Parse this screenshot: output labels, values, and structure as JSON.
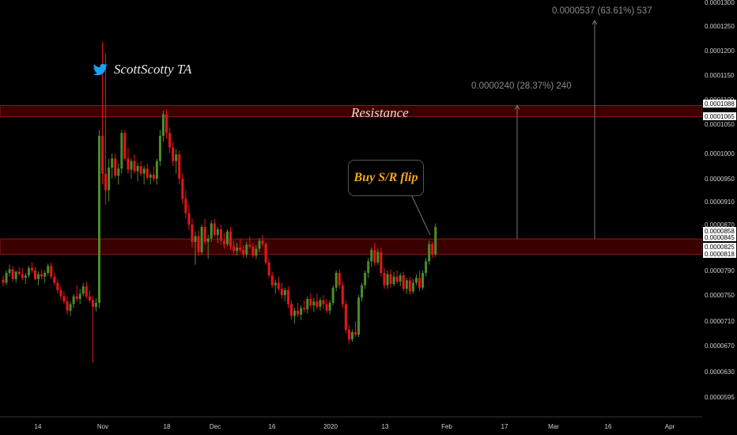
{
  "brand": {
    "handle": "ScottScotty TA",
    "icon": "twitter-bird-icon",
    "icon_color": "#1da1f2"
  },
  "annotations": {
    "resistance_label": "Resistance",
    "callout_label": "Buy S/R flip",
    "measure_large": "0.0000537 (63.61%) 537",
    "measure_small": "0.0000240 (28.37%) 240"
  },
  "colors": {
    "up": "#4c8c2b",
    "down": "#e8141b",
    "zone_fill": "#3a0000",
    "zone_border": "#8b1a1a",
    "axis_text": "#d0d0d0",
    "price_tag_bg": "#ffffff"
  },
  "chart_data": {
    "type": "candlestick",
    "title": "",
    "xlabel": "",
    "ylabel": "",
    "ylim": [
      5.75e-05,
      0.0001305
    ],
    "x_ticks": [
      "14",
      "Nov",
      "18",
      "Dec",
      "16",
      "2020",
      "13",
      "Feb",
      "17",
      "Mar",
      "16",
      "Apr"
    ],
    "y_ticks": [
      "0.0001300",
      "0.0001250",
      "0.0001200",
      "0.0001150",
      "0.0001100",
      "0.0001050",
      "0.0001000",
      "0.0000950",
      "0.0000910",
      "0.0000870",
      "0.0000830",
      "0.0000790",
      "0.0000750",
      "0.0000710",
      "0.0000670",
      "0.0000630",
      "0.0000595"
    ],
    "price_tags": [
      "0.0001088",
      "0.0001065",
      "0.0000858",
      "0.0000845",
      "0.0000825",
      "0.0000818"
    ],
    "zones": [
      {
        "name": "resistance",
        "from": 0.0001065,
        "to": 0.0001088
      },
      {
        "name": "support-resistance-flip",
        "from": 8.18e-05,
        "to": 8.45e-05
      }
    ],
    "candles": [
      [
        7.75e-05,
        7.82e-05,
        7.64e-05,
        7.7e-05
      ],
      [
        7.7e-05,
        7.9e-05,
        7.66e-05,
        7.86e-05
      ],
      [
        7.86e-05,
        8e-05,
        7.8e-05,
        7.92e-05
      ],
      [
        7.92e-05,
        7.98e-05,
        7.72e-05,
        7.76e-05
      ],
      [
        7.76e-05,
        7.9e-05,
        7.7e-05,
        7.88e-05
      ],
      [
        7.88e-05,
        7.96e-05,
        7.82e-05,
        7.84e-05
      ],
      [
        7.84e-05,
        7.94e-05,
        7.74e-05,
        7.78e-05
      ],
      [
        7.78e-05,
        7.86e-05,
        7.68e-05,
        7.82e-05
      ],
      [
        7.82e-05,
        7.98e-05,
        7.78e-05,
        7.94e-05
      ],
      [
        7.94e-05,
        8.04e-05,
        7.86e-05,
        7.9e-05
      ],
      [
        7.9e-05,
        7.96e-05,
        7.74e-05,
        7.76e-05
      ],
      [
        7.76e-05,
        7.88e-05,
        7.66e-05,
        7.84e-05
      ],
      [
        7.84e-05,
        7.92e-05,
        7.76e-05,
        7.8e-05
      ],
      [
        7.8e-05,
        7.9e-05,
        7.7e-05,
        7.86e-05
      ],
      [
        7.86e-05,
        8.02e-05,
        7.82e-05,
        7.98e-05
      ],
      [
        7.98e-05,
        8.04e-05,
        7.76e-05,
        7.8e-05
      ],
      [
        7.8e-05,
        7.86e-05,
        7.66e-05,
        7.7e-05
      ],
      [
        7.7e-05,
        7.76e-05,
        7.52e-05,
        7.58e-05
      ],
      [
        7.58e-05,
        7.64e-05,
        7.42e-05,
        7.48e-05
      ],
      [
        7.48e-05,
        7.56e-05,
        7.36e-05,
        7.4e-05
      ],
      [
        7.4e-05,
        7.48e-05,
        7.2e-05,
        7.26e-05
      ],
      [
        7.26e-05,
        7.4e-05,
        7.18e-05,
        7.36e-05
      ],
      [
        7.36e-05,
        7.52e-05,
        7.3e-05,
        7.48e-05
      ],
      [
        7.48e-05,
        7.66e-05,
        7.4e-05,
        7.44e-05
      ],
      [
        7.44e-05,
        7.6e-05,
        7.36e-05,
        7.52e-05
      ],
      [
        7.52e-05,
        7.7e-05,
        7.48e-05,
        7.64e-05
      ],
      [
        7.64e-05,
        7.72e-05,
        7.44e-05,
        7.48e-05
      ],
      [
        7.48e-05,
        7.58e-05,
        7.38e-05,
        7.42e-05
      ],
      [
        7.42e-05,
        7.48e-05,
        6.44e-05,
        7.32e-05
      ],
      [
        7.32e-05,
        7.45e-05,
        7.25e-05,
        7.38e-05
      ],
      [
        7.38e-05,
        0.000104,
        7.3e-05,
        0.000103
      ],
      [
        0.000103,
        0.0001218,
        9.4e-05,
        9.6e-05
      ],
      [
        9.6e-05,
        0.0001195,
        9.05e-05,
        9.3e-05
      ],
      [
        9.3e-05,
        9.9e-05,
        9.1e-05,
        9.72e-05
      ],
      [
        9.72e-05,
        0.0001,
        9.5e-05,
        9.9e-05
      ],
      [
        9.9e-05,
        0.0001,
        9.5e-05,
        9.56e-05
      ],
      [
        9.56e-05,
        9.8e-05,
        9.4e-05,
        9.7e-05
      ],
      [
        9.7e-05,
        0.000104,
        9.6e-05,
        0.0001035
      ],
      [
        0.0001035,
        0.000104,
        9.85e-05,
        9.9e-05
      ],
      [
        9.9e-05,
        0.000101,
        9.6e-05,
        9.68e-05
      ],
      [
        9.68e-05,
        9.9e-05,
        9.5e-05,
        9.85e-05
      ],
      [
        9.85e-05,
        9.98e-05,
        9.6e-05,
        9.65e-05
      ],
      [
        9.65e-05,
        9.82e-05,
        9.45e-05,
        9.75e-05
      ],
      [
        9.75e-05,
        9.85e-05,
        9.55e-05,
        9.6e-05
      ],
      [
        9.6e-05,
        9.76e-05,
        9.4e-05,
        9.7e-05
      ],
      [
        9.7e-05,
        9.8e-05,
        9.48e-05,
        9.52e-05
      ],
      [
        9.52e-05,
        9.62e-05,
        9.4e-05,
        9.58e-05
      ],
      [
        9.58e-05,
        9.75e-05,
        9.45e-05,
        9.5e-05
      ],
      [
        9.5e-05,
        9.9e-05,
        9.4e-05,
        9.85e-05
      ],
      [
        9.85e-05,
        0.000104,
        9.75e-05,
        0.000103
      ],
      [
        0.000103,
        0.0001078,
        0.000102,
        0.000107
      ],
      [
        0.000107,
        0.000108,
        0.0001025,
        0.0001035
      ],
      [
        0.0001035,
        0.0001045,
        0.0001,
        0.000101
      ],
      [
        0.000101,
        0.000102,
        9.75e-05,
        9.85e-05
      ],
      [
        9.85e-05,
        0.0001008,
        9.6e-05,
        9.98e-05
      ],
      [
        9.98e-05,
        0.0001005,
        9.4e-05,
        9.5e-05
      ],
      [
        9.5e-05,
        9.6e-05,
        9.05e-05,
        9.15e-05
      ],
      [
        9.15e-05,
        9.3e-05,
        8.8e-05,
        8.9e-05
      ],
      [
        8.9e-05,
        9.05e-05,
        8.6e-05,
        8.7e-05
      ],
      [
        8.7e-05,
        8.8e-05,
        8.3e-05,
        8.4e-05
      ],
      [
        8.4e-05,
        8.58e-05,
        8e-05,
        8.5e-05
      ],
      [
        8.5e-05,
        8.6e-05,
        8.15e-05,
        8.22e-05
      ],
      [
        8.22e-05,
        8.7e-05,
        8.18e-05,
        8.66e-05
      ],
      [
        8.66e-05,
        8.8e-05,
        8.35e-05,
        8.4e-05
      ],
      [
        8.4e-05,
        8.52e-05,
        8.1e-05,
        8.46e-05
      ],
      [
        8.46e-05,
        8.78e-05,
        8.4e-05,
        8.72e-05
      ],
      [
        8.72e-05,
        8.8e-05,
        8.48e-05,
        8.52e-05
      ],
      [
        8.52e-05,
        8.66e-05,
        8.38e-05,
        8.62e-05
      ],
      [
        8.62e-05,
        8.7e-05,
        8.36e-05,
        8.42e-05
      ],
      [
        8.42e-05,
        8.56e-05,
        8.28e-05,
        8.36e-05
      ],
      [
        8.36e-05,
        8.62e-05,
        8.32e-05,
        8.58e-05
      ],
      [
        8.58e-05,
        8.66e-05,
        8.26e-05,
        8.32e-05
      ],
      [
        8.32e-05,
        8.42e-05,
        8.18e-05,
        8.24e-05
      ],
      [
        8.24e-05,
        8.38e-05,
        8.16e-05,
        8.3e-05
      ],
      [
        8.3e-05,
        8.45e-05,
        8.22e-05,
        8.26e-05
      ],
      [
        8.26e-05,
        8.34e-05,
        8.12e-05,
        8.18e-05
      ],
      [
        8.18e-05,
        8.4e-05,
        8.12e-05,
        8.35e-05
      ],
      [
        8.35e-05,
        8.5e-05,
        8.28e-05,
        8.32e-05
      ],
      [
        8.32e-05,
        8.38e-05,
        8.12e-05,
        8.16e-05
      ],
      [
        8.16e-05,
        8.34e-05,
        8.1e-05,
        8.28e-05
      ],
      [
        8.28e-05,
        8.46e-05,
        8.22e-05,
        8.42e-05
      ],
      [
        8.42e-05,
        8.52e-05,
        8.32e-05,
        8.36e-05
      ],
      [
        8.36e-05,
        8.4e-05,
        8e-05,
        8.04e-05
      ],
      [
        8.04e-05,
        8.1e-05,
        7.78e-05,
        7.82e-05
      ],
      [
        7.82e-05,
        7.88e-05,
        7.62e-05,
        7.66e-05
      ],
      [
        7.66e-05,
        7.75e-05,
        7.52e-05,
        7.7e-05
      ],
      [
        7.7e-05,
        7.8e-05,
        7.56e-05,
        7.6e-05
      ],
      [
        7.6e-05,
        7.7e-05,
        7.44e-05,
        7.5e-05
      ],
      [
        7.5e-05,
        7.62e-05,
        7.4e-05,
        7.58e-05
      ],
      [
        7.58e-05,
        7.64e-05,
        7.3e-05,
        7.36e-05
      ],
      [
        7.36e-05,
        7.42e-05,
        7.12e-05,
        7.18e-05
      ],
      [
        7.18e-05,
        7.3e-05,
        7.06e-05,
        7.26e-05
      ],
      [
        7.26e-05,
        7.38e-05,
        7.16e-05,
        7.2e-05
      ],
      [
        7.2e-05,
        7.34e-05,
        7.12e-05,
        7.3e-05
      ],
      [
        7.3e-05,
        7.42e-05,
        7.24e-05,
        7.28e-05
      ],
      [
        7.28e-05,
        7.48e-05,
        7.22e-05,
        7.44e-05
      ],
      [
        7.44e-05,
        7.52e-05,
        7.3e-05,
        7.34e-05
      ],
      [
        7.34e-05,
        7.46e-05,
        7.24e-05,
        7.4e-05
      ],
      [
        7.4e-05,
        7.52e-05,
        7.28e-05,
        7.32e-05
      ],
      [
        7.32e-05,
        7.46e-05,
        7.26e-05,
        7.42e-05
      ],
      [
        7.42e-05,
        7.5e-05,
        7.28e-05,
        7.36e-05
      ],
      [
        7.36e-05,
        7.44e-05,
        7.22e-05,
        7.26e-05
      ],
      [
        7.26e-05,
        7.42e-05,
        7.2e-05,
        7.38e-05
      ],
      [
        7.38e-05,
        7.66e-05,
        7.34e-05,
        7.62e-05
      ],
      [
        7.62e-05,
        7.9e-05,
        7.56e-05,
        7.86e-05
      ],
      [
        7.86e-05,
        7.92e-05,
        7.6e-05,
        7.66e-05
      ],
      [
        7.66e-05,
        7.72e-05,
        7.3e-05,
        7.36e-05
      ],
      [
        7.36e-05,
        7.42e-05,
        6.9e-05,
        6.96e-05
      ],
      [
        6.96e-05,
        7.04e-05,
        6.72e-05,
        6.8e-05
      ],
      [
        6.8e-05,
        6.96e-05,
        6.76e-05,
        6.92e-05
      ],
      [
        6.92e-05,
        7.1e-05,
        6.84e-05,
        6.88e-05
      ],
      [
        6.88e-05,
        7.5e-05,
        6.84e-05,
        7.46e-05
      ],
      [
        7.46e-05,
        7.7e-05,
        7.4e-05,
        7.66e-05
      ],
      [
        7.66e-05,
        7.9e-05,
        7.6e-05,
        7.86e-05
      ],
      [
        7.86e-05,
        8.12e-05,
        7.78e-05,
        8.06e-05
      ],
      [
        8.06e-05,
        8.3e-05,
        7.96e-05,
        8.26e-05
      ],
      [
        8.26e-05,
        8.38e-05,
        7.98e-05,
        8.04e-05
      ],
      [
        8.04e-05,
        8.28e-05,
        8e-05,
        8.22e-05
      ],
      [
        8.22e-05,
        8.3e-05,
        7.8e-05,
        7.86e-05
      ],
      [
        7.86e-05,
        7.94e-05,
        7.6e-05,
        7.66e-05
      ],
      [
        7.66e-05,
        7.9e-05,
        7.6e-05,
        7.84e-05
      ],
      [
        7.84e-05,
        7.92e-05,
        7.62e-05,
        7.68e-05
      ],
      [
        7.68e-05,
        7.88e-05,
        7.64e-05,
        7.8e-05
      ],
      [
        7.8e-05,
        7.9e-05,
        7.68e-05,
        7.72e-05
      ],
      [
        7.72e-05,
        7.86e-05,
        7.64e-05,
        7.82e-05
      ],
      [
        7.82e-05,
        7.88e-05,
        7.56e-05,
        7.6e-05
      ],
      [
        7.6e-05,
        7.78e-05,
        7.52e-05,
        7.74e-05
      ],
      [
        7.74e-05,
        7.8e-05,
        7.5e-05,
        7.56e-05
      ],
      [
        7.56e-05,
        7.76e-05,
        7.52e-05,
        7.7e-05
      ],
      [
        7.7e-05,
        7.84e-05,
        7.66e-05,
        7.78e-05
      ],
      [
        7.78e-05,
        7.9e-05,
        7.56e-05,
        7.62e-05
      ],
      [
        7.62e-05,
        7.9e-05,
        7.58e-05,
        7.86e-05
      ],
      [
        7.86e-05,
        8.12e-05,
        7.8e-05,
        8.06e-05
      ],
      [
        8.06e-05,
        8.42e-05,
        8e-05,
        8.36e-05
      ],
      [
        8.36e-05,
        8.4e-05,
        8.12e-05,
        8.18e-05
      ],
      [
        8.18e-05,
        8.72e-05,
        8.14e-05,
        8.66e-05
      ]
    ]
  }
}
